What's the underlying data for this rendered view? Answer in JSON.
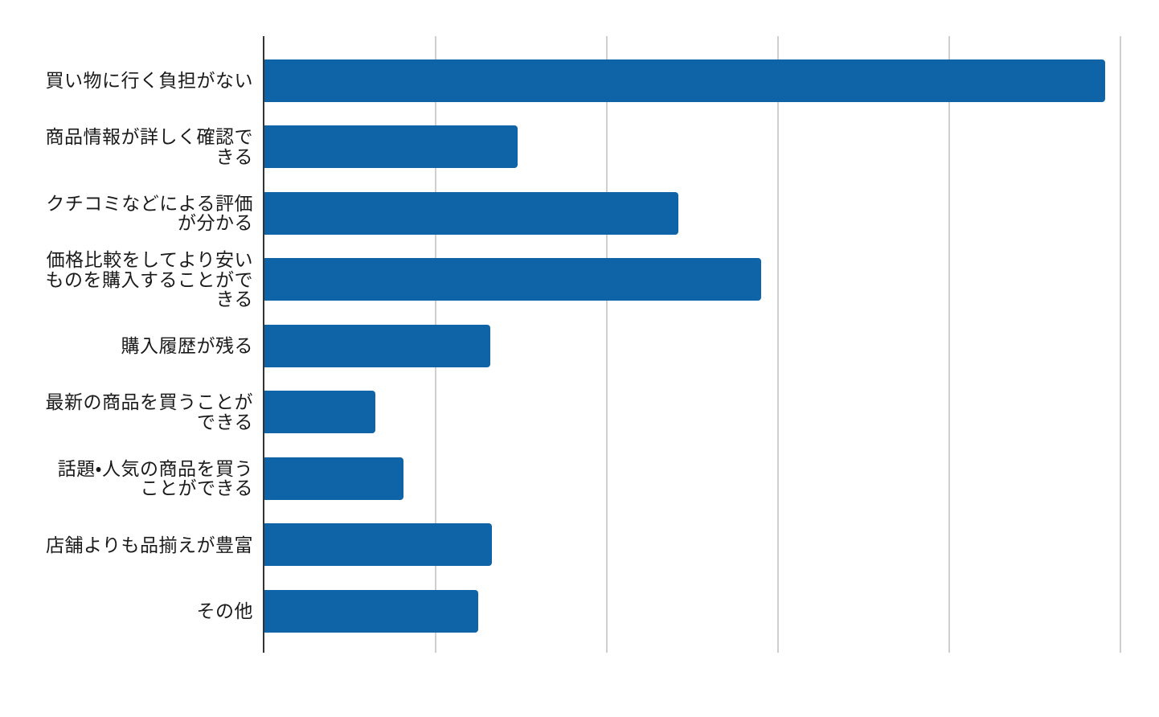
{
  "chart_data": {
    "type": "bar",
    "orientation": "horizontal",
    "title": "",
    "xlabel": "",
    "ylabel": "",
    "categories": [
      "買い物に行く負担がない",
      "商品情報が詳しく確認できる",
      "クチコミなどによる評価が分かる",
      "価格比較をしてより安いものを購入することができる",
      "購入履歴が残る",
      "最新の商品を買うことができる",
      "話題・人気の商品を買うことができる",
      "店舗よりも品揃えが豊富",
      "その他"
    ],
    "categories_wrapped": [
      "買い物に行く負担がない",
      "商品情報が詳しく確認で\nきる",
      "クチコミなどによる評価\nが分かる",
      "価格比較をしてより安い\nものを購入することがで\nきる",
      "購入履歴が残る",
      "最新の商品を買うことが\nできる",
      "話題・人気の商品を買う\nことができる",
      "店舗よりも品揃えが豊富",
      "その他"
    ],
    "values": [
      49.1,
      14.8,
      24.2,
      29.0,
      13.2,
      6.5,
      8.1,
      13.3,
      12.5
    ],
    "xlim": [
      0,
      50
    ],
    "x_gridline_step": 10,
    "x_tick_labels_visible": false,
    "grid": true,
    "legend": "none",
    "bar_color": "#0e64a6",
    "gridline_color": "#cfcfcf",
    "axis_line_color": "#333333",
    "label_color": "#1a1a1a"
  }
}
